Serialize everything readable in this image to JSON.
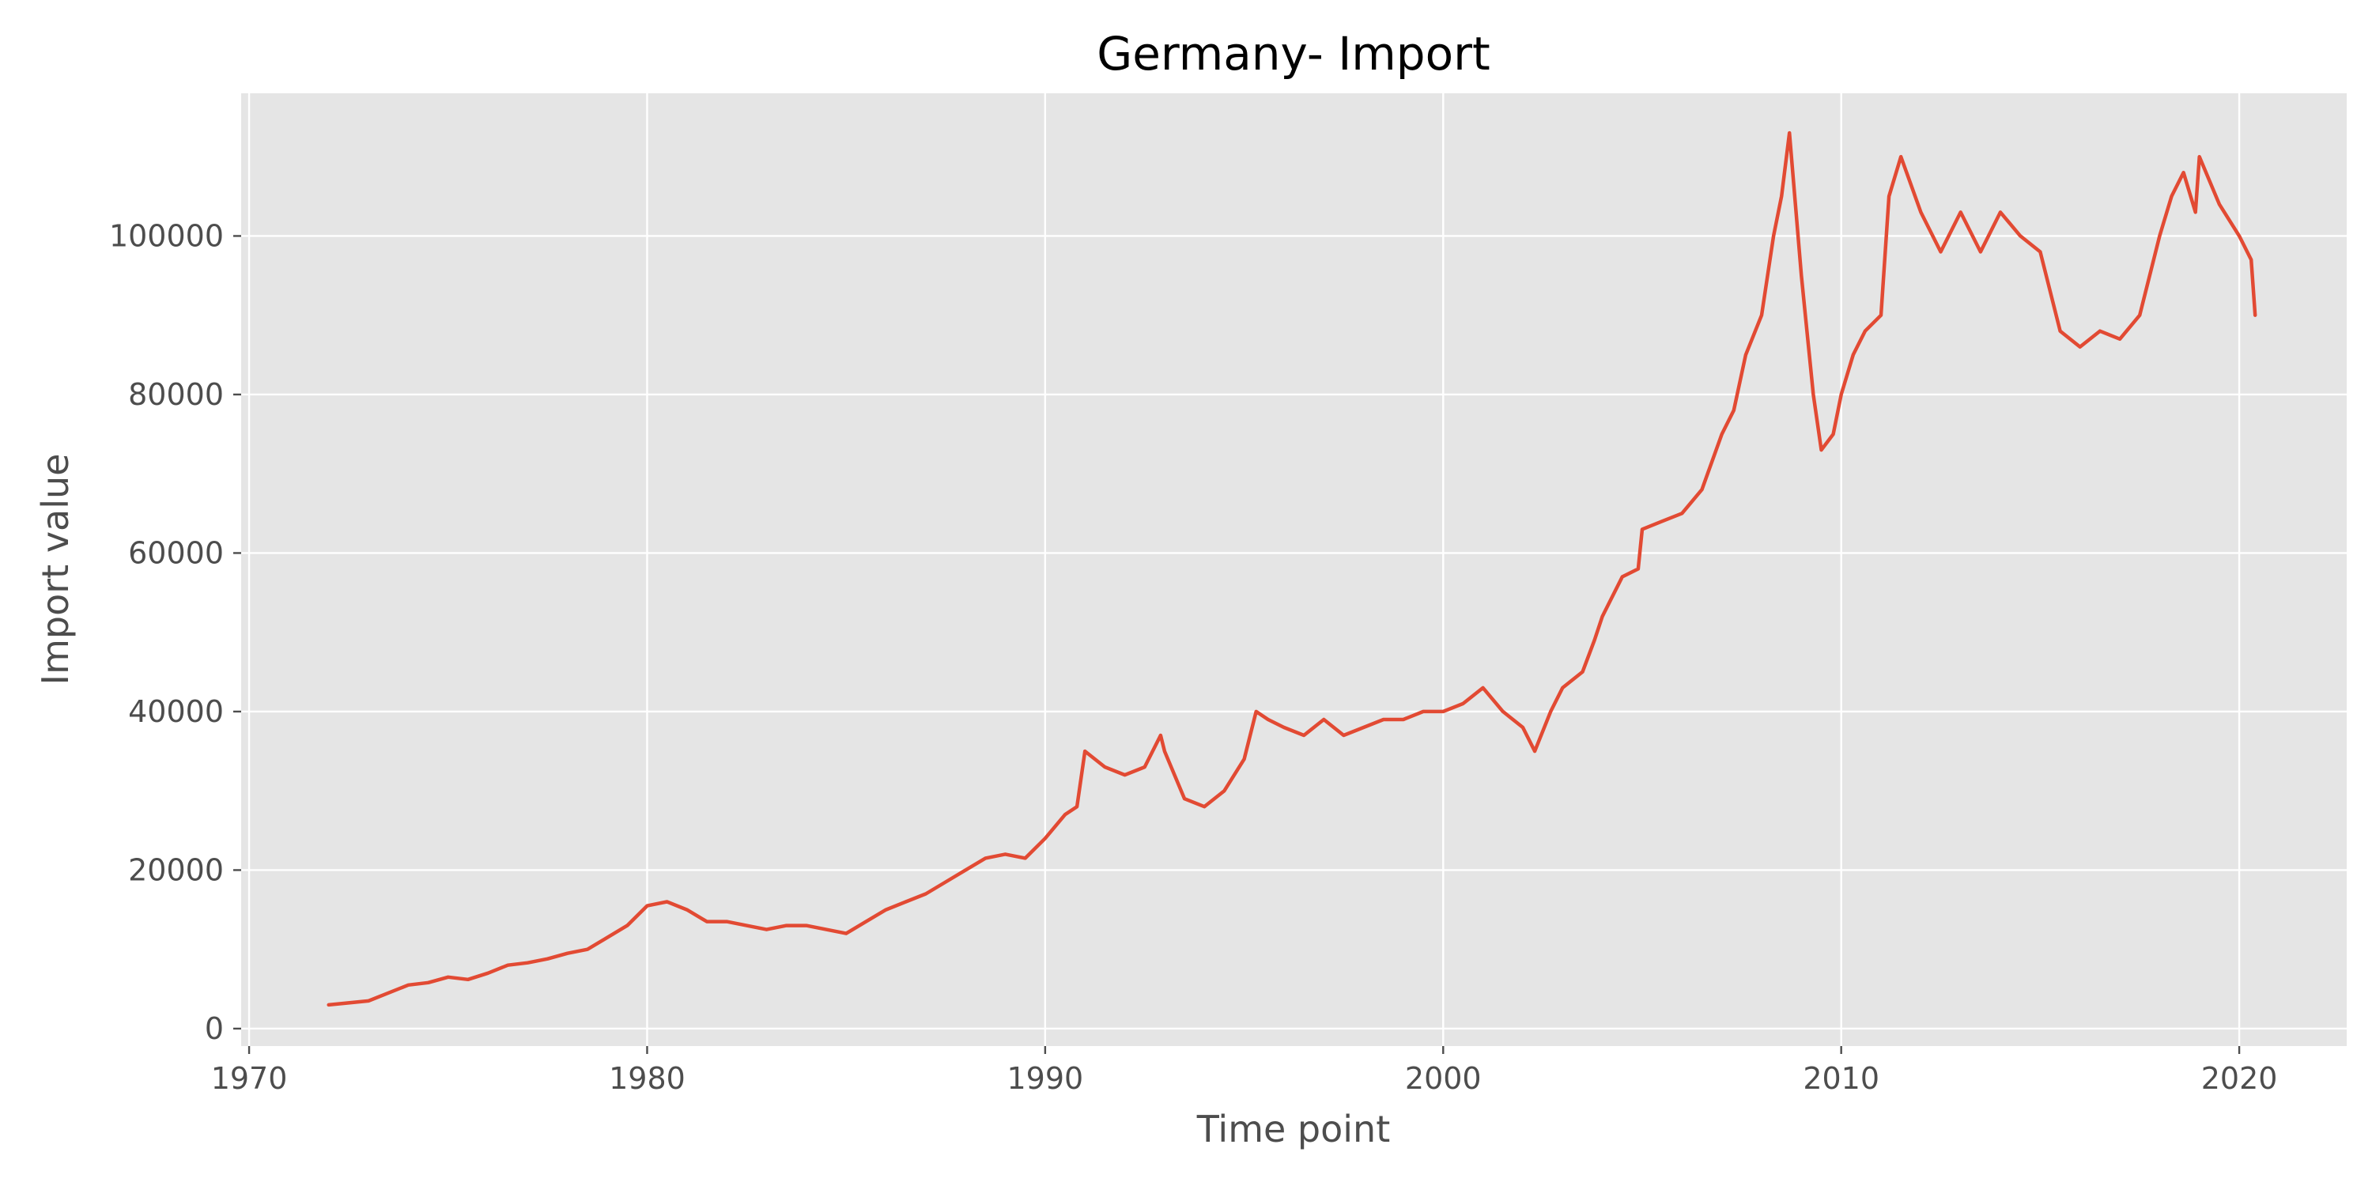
{
  "chart_data": {
    "type": "line",
    "title": "Germany- Import",
    "xlabel": "Time point",
    "ylabel": "Import value",
    "xlim": [
      1969.8,
      2022.7
    ],
    "ylim": [
      -2200,
      118000
    ],
    "x_ticks": [
      1970,
      1980,
      1990,
      2000,
      2010,
      2020
    ],
    "y_ticks": [
      0,
      20000,
      40000,
      60000,
      80000,
      100000
    ],
    "grid": true,
    "legend": "none",
    "colors": {
      "line": "#e24a33",
      "plot_bg": "#e5e5e5",
      "grid": "#ffffff",
      "tick": "#4d4d4d"
    },
    "series": [
      {
        "x": [
          1972.0,
          1973.0,
          1973.5,
          1974.0,
          1974.5,
          1975.0,
          1975.5,
          1976.0,
          1976.5,
          1977.0,
          1977.5,
          1978.0,
          1978.5,
          1979.0,
          1979.5,
          1980.0,
          1980.5,
          1981.0,
          1981.5,
          1982.0,
          1982.5,
          1983.0,
          1983.5,
          1984.0,
          1984.5,
          1985.0,
          1985.5,
          1986.0,
          1986.5,
          1987.0,
          1987.5,
          1988.0,
          1988.5,
          1989.0,
          1989.5,
          1990.0,
          1990.5,
          1990.8,
          1991.0,
          1991.5,
          1992.0,
          1992.5,
          1992.9,
          1993.0,
          1993.5,
          1994.0,
          1994.5,
          1995.0,
          1995.3,
          1995.6,
          1996.0,
          1996.5,
          1997.0,
          1997.5,
          1998.0,
          1998.5,
          1999.0,
          1999.5,
          2000.0,
          2000.5,
          2001.0,
          2001.5,
          2002.0,
          2002.3,
          2002.7,
          2003.0,
          2003.5,
          2003.8,
          2004.0,
          2004.5,
          2004.9,
          2005.0,
          2005.5,
          2006.0,
          2006.5,
          2007.0,
          2007.3,
          2007.6,
          2008.0,
          2008.3,
          2008.5,
          2008.7,
          2009.0,
          2009.3,
          2009.5,
          2009.8,
          2010.0,
          2010.3,
          2010.6,
          2011.0,
          2011.2,
          2011.5,
          2012.0,
          2012.5,
          2013.0,
          2013.5,
          2014.0,
          2014.5,
          2015.0,
          2015.5,
          2016.0,
          2016.5,
          2017.0,
          2017.5,
          2018.0,
          2018.3,
          2018.6,
          2018.9,
          2019.0,
          2019.5,
          2020.0,
          2020.3,
          2020.4
        ],
        "y": [
          3000,
          3500,
          4500,
          5500,
          5800,
          6500,
          6200,
          7000,
          8000,
          8300,
          8800,
          9500,
          10000,
          11500,
          13000,
          15500,
          16000,
          15000,
          13500,
          13500,
          13000,
          12500,
          13000,
          13000,
          12500,
          12000,
          13500,
          15000,
          16000,
          17000,
          18500,
          20000,
          21500,
          22000,
          21500,
          24000,
          27000,
          28000,
          35000,
          33000,
          32000,
          33000,
          37000,
          35000,
          29000,
          28000,
          30000,
          34000,
          40000,
          39000,
          38000,
          37000,
          39000,
          37000,
          38000,
          39000,
          39000,
          40000,
          40000,
          41000,
          43000,
          40000,
          38000,
          35000,
          40000,
          43000,
          45000,
          49000,
          52000,
          57000,
          58000,
          63000,
          64000,
          65000,
          68000,
          75000,
          78000,
          85000,
          90000,
          100000,
          105000,
          113000,
          95000,
          80000,
          73000,
          75000,
          80000,
          85000,
          88000,
          90000,
          105000,
          110000,
          103000,
          98000,
          103000,
          98000,
          103000,
          100000,
          98000,
          88000,
          86000,
          88000,
          87000,
          90000,
          100000,
          105000,
          108000,
          103000,
          110000,
          104000,
          100000,
          97000,
          90000
        ]
      }
    ]
  }
}
